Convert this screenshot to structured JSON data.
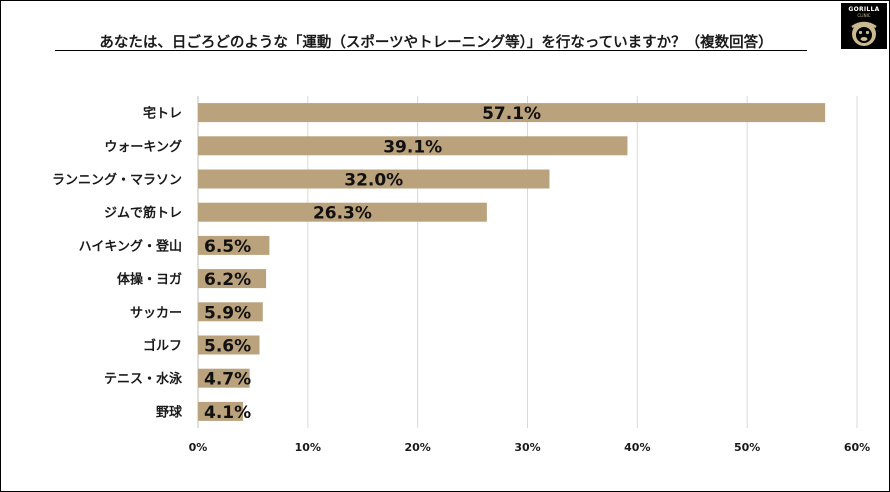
{
  "logo": {
    "name": "GORILLA",
    "sub": "CLINIC"
  },
  "chart_data": {
    "type": "bar",
    "orientation": "horizontal",
    "title": "あなたは、日ごろどのような「運動（スポーツやトレーニング等）」を行なっていますか？（複数回答）",
    "categories": [
      "宅トレ",
      "ウォーキング",
      "ランニング・マラソン",
      "ジムで筋トレ",
      "ハイキング・登山",
      "体操・ヨガ",
      "サッカー",
      "ゴルフ",
      "テニス・水泳",
      "野球"
    ],
    "values": [
      57.1,
      39.1,
      32.0,
      26.3,
      6.5,
      6.2,
      5.9,
      5.6,
      4.7,
      4.1
    ],
    "value_labels": [
      "57.1%",
      "39.1%",
      "32.0%",
      "26.3%",
      "6.5%",
      "6.2%",
      "5.9%",
      "5.6%",
      "4.7%",
      "4.1%"
    ],
    "xlim": [
      0,
      60
    ],
    "xticks": [
      0,
      10,
      20,
      30,
      40,
      50,
      60
    ],
    "xtick_labels": [
      "0%",
      "10%",
      "20%",
      "30%",
      "40%",
      "50%",
      "60%"
    ],
    "grid": true,
    "legend": "none",
    "bar_color": "#baa27c",
    "grid_color": "#d9d9d9"
  }
}
